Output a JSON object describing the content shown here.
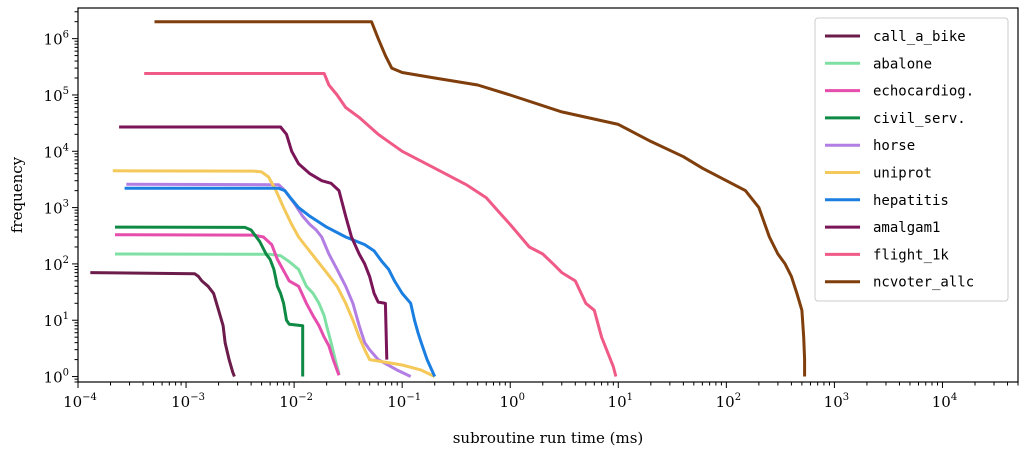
{
  "chart_data": {
    "type": "line",
    "xlabel": "subroutine run time (ms)",
    "ylabel": "frequency",
    "x_scale": "log",
    "y_scale": "log",
    "xlim": [
      0.0001,
      50000
    ],
    "ylim": [
      0.8,
      3500000
    ],
    "x_ticks": [
      0.0001,
      0.001,
      0.01,
      0.1,
      1,
      10,
      100,
      1000,
      10000
    ],
    "x_tick_labels": [
      {
        "base": "10",
        "exp": "−4"
      },
      {
        "base": "10",
        "exp": "−3"
      },
      {
        "base": "10",
        "exp": "−2"
      },
      {
        "base": "10",
        "exp": "−1"
      },
      {
        "base": "10",
        "exp": "0"
      },
      {
        "base": "10",
        "exp": "1"
      },
      {
        "base": "10",
        "exp": "2"
      },
      {
        "base": "10",
        "exp": "3"
      },
      {
        "base": "10",
        "exp": "4"
      }
    ],
    "y_ticks": [
      1,
      10,
      100,
      1000,
      10000,
      100000,
      1000000
    ],
    "y_tick_labels": [
      {
        "base": "10",
        "exp": "0"
      },
      {
        "base": "10",
        "exp": "1"
      },
      {
        "base": "10",
        "exp": "2"
      },
      {
        "base": "10",
        "exp": "3"
      },
      {
        "base": "10",
        "exp": "4"
      },
      {
        "base": "10",
        "exp": "5"
      },
      {
        "base": "10",
        "exp": "6"
      }
    ],
    "grid": false,
    "legend_position": "top-right",
    "series": [
      {
        "name": "call_a_bike",
        "color": "#6b1c4a",
        "points": [
          [
            0.00013,
            70
          ],
          [
            0.0012,
            67
          ],
          [
            0.0013,
            60
          ],
          [
            0.0014,
            50
          ],
          [
            0.0016,
            40
          ],
          [
            0.0018,
            30
          ],
          [
            0.002,
            15
          ],
          [
            0.0022,
            8
          ],
          [
            0.0023,
            4
          ],
          [
            0.0025,
            2
          ],
          [
            0.0027,
            1.2
          ],
          [
            0.0028,
            1
          ]
        ]
      },
      {
        "name": "abalone",
        "color": "#7fe0a4",
        "points": [
          [
            0.00022,
            150
          ],
          [
            0.006,
            148
          ],
          [
            0.0075,
            140
          ],
          [
            0.009,
            110
          ],
          [
            0.011,
            80
          ],
          [
            0.013,
            40
          ],
          [
            0.015,
            30
          ],
          [
            0.017,
            20
          ],
          [
            0.019,
            12
          ],
          [
            0.02,
            8
          ],
          [
            0.022,
            4
          ],
          [
            0.024,
            2
          ],
          [
            0.026,
            1.1
          ]
        ]
      },
      {
        "name": "echocardiog.",
        "color": "#e64dad",
        "points": [
          [
            0.00022,
            330
          ],
          [
            0.0042,
            325
          ],
          [
            0.0052,
            300
          ],
          [
            0.0062,
            220
          ],
          [
            0.007,
            120
          ],
          [
            0.009,
            50
          ],
          [
            0.011,
            40
          ],
          [
            0.013,
            20
          ],
          [
            0.015,
            12
          ],
          [
            0.017,
            8
          ],
          [
            0.019,
            5
          ],
          [
            0.021,
            3.5
          ],
          [
            0.023,
            2
          ],
          [
            0.026,
            1.05
          ]
        ]
      },
      {
        "name": "civil_serv.",
        "color": "#0f8a44",
        "points": [
          [
            0.00022,
            450
          ],
          [
            0.0035,
            445
          ],
          [
            0.004,
            400
          ],
          [
            0.0048,
            250
          ],
          [
            0.0055,
            150
          ],
          [
            0.006,
            120
          ],
          [
            0.0065,
            80
          ],
          [
            0.007,
            40
          ],
          [
            0.0075,
            30
          ],
          [
            0.008,
            20
          ],
          [
            0.0085,
            10
          ],
          [
            0.009,
            8.5
          ],
          [
            0.012,
            8
          ],
          [
            0.012,
            1
          ]
        ]
      },
      {
        "name": "horse",
        "color": "#b27ee3",
        "points": [
          [
            0.00028,
            2600
          ],
          [
            0.0072,
            2550
          ],
          [
            0.0082,
            2000
          ],
          [
            0.01,
            1200
          ],
          [
            0.012,
            700
          ],
          [
            0.014,
            500
          ],
          [
            0.016,
            400
          ],
          [
            0.018,
            300
          ],
          [
            0.021,
            150
          ],
          [
            0.025,
            80
          ],
          [
            0.03,
            40
          ],
          [
            0.035,
            20
          ],
          [
            0.04,
            8
          ],
          [
            0.045,
            4
          ],
          [
            0.05,
            3
          ],
          [
            0.06,
            2
          ],
          [
            0.09,
            1.3
          ],
          [
            0.12,
            1
          ]
        ]
      },
      {
        "name": "uniprot",
        "color": "#f5c85a",
        "points": [
          [
            0.00021,
            4500
          ],
          [
            0.0042,
            4450
          ],
          [
            0.005,
            4300
          ],
          [
            0.0058,
            3500
          ],
          [
            0.0068,
            2000
          ],
          [
            0.008,
            1000
          ],
          [
            0.0095,
            500
          ],
          [
            0.011,
            300
          ],
          [
            0.013,
            200
          ],
          [
            0.016,
            120
          ],
          [
            0.02,
            70
          ],
          [
            0.025,
            40
          ],
          [
            0.03,
            20
          ],
          [
            0.035,
            10
          ],
          [
            0.04,
            5
          ],
          [
            0.045,
            3
          ],
          [
            0.05,
            2
          ],
          [
            0.1,
            1.6
          ],
          [
            0.15,
            1.3
          ],
          [
            0.2,
            1
          ]
        ]
      },
      {
        "name": "hepatitis",
        "color": "#1a7fe0",
        "points": [
          [
            0.00027,
            2200
          ],
          [
            0.0072,
            2200
          ],
          [
            0.0082,
            2000
          ],
          [
            0.0095,
            1400
          ],
          [
            0.011,
            1000
          ],
          [
            0.014,
            700
          ],
          [
            0.02,
            450
          ],
          [
            0.03,
            300
          ],
          [
            0.045,
            220
          ],
          [
            0.055,
            170
          ],
          [
            0.065,
            110
          ],
          [
            0.075,
            80
          ],
          [
            0.085,
            50
          ],
          [
            0.1,
            30
          ],
          [
            0.12,
            20
          ],
          [
            0.13,
            10
          ],
          [
            0.14,
            6
          ],
          [
            0.15,
            4
          ],
          [
            0.17,
            2
          ],
          [
            0.2,
            1
          ]
        ]
      },
      {
        "name": "amalgam1",
        "color": "#7a1558",
        "points": [
          [
            0.00024,
            27000
          ],
          [
            0.0075,
            27000
          ],
          [
            0.0085,
            20000
          ],
          [
            0.0095,
            10000
          ],
          [
            0.011,
            6000
          ],
          [
            0.014,
            4000
          ],
          [
            0.018,
            3000
          ],
          [
            0.022,
            2700
          ],
          [
            0.026,
            2000
          ],
          [
            0.03,
            700
          ],
          [
            0.034,
            300
          ],
          [
            0.04,
            150
          ],
          [
            0.045,
            100
          ],
          [
            0.05,
            60
          ],
          [
            0.055,
            30
          ],
          [
            0.06,
            21
          ],
          [
            0.07,
            20
          ],
          [
            0.072,
            2
          ]
        ]
      },
      {
        "name": "flight_1k",
        "color": "#f05a87",
        "points": [
          [
            0.00041,
            240000
          ],
          [
            0.019,
            240000
          ],
          [
            0.021,
            150000
          ],
          [
            0.025,
            100000
          ],
          [
            0.03,
            60000
          ],
          [
            0.04,
            40000
          ],
          [
            0.06,
            20000
          ],
          [
            0.1,
            10000
          ],
          [
            0.2,
            5000
          ],
          [
            0.4,
            2500
          ],
          [
            0.6,
            1500
          ],
          [
            0.8,
            800
          ],
          [
            1.0,
            500
          ],
          [
            1.5,
            200
          ],
          [
            2.0,
            150
          ],
          [
            2.5,
            100
          ],
          [
            3.0,
            70
          ],
          [
            4.0,
            50
          ],
          [
            5.0,
            20
          ],
          [
            6.0,
            15
          ],
          [
            7.0,
            5
          ],
          [
            9.0,
            1.5
          ],
          [
            9.5,
            1
          ]
        ]
      },
      {
        "name": "ncvoter_allc",
        "color": "#7f3e0b",
        "points": [
          [
            0.00051,
            2000000
          ],
          [
            0.052,
            2000000
          ],
          [
            0.06,
            1000000
          ],
          [
            0.07,
            500000
          ],
          [
            0.08,
            300000
          ],
          [
            0.1,
            250000
          ],
          [
            0.2,
            200000
          ],
          [
            0.5,
            150000
          ],
          [
            1.0,
            100000
          ],
          [
            3.0,
            50000
          ],
          [
            10.0,
            30000
          ],
          [
            20.0,
            15000
          ],
          [
            40.0,
            8000
          ],
          [
            60.0,
            5000
          ],
          [
            100.0,
            3000
          ],
          [
            150.0,
            2000
          ],
          [
            200.0,
            1000
          ],
          [
            250.0,
            300
          ],
          [
            300.0,
            150
          ],
          [
            350.0,
            100
          ],
          [
            400.0,
            60
          ],
          [
            450.0,
            30
          ],
          [
            500.0,
            15
          ],
          [
            520.0,
            5
          ],
          [
            530.0,
            2
          ],
          [
            530.0,
            1
          ]
        ]
      }
    ]
  }
}
